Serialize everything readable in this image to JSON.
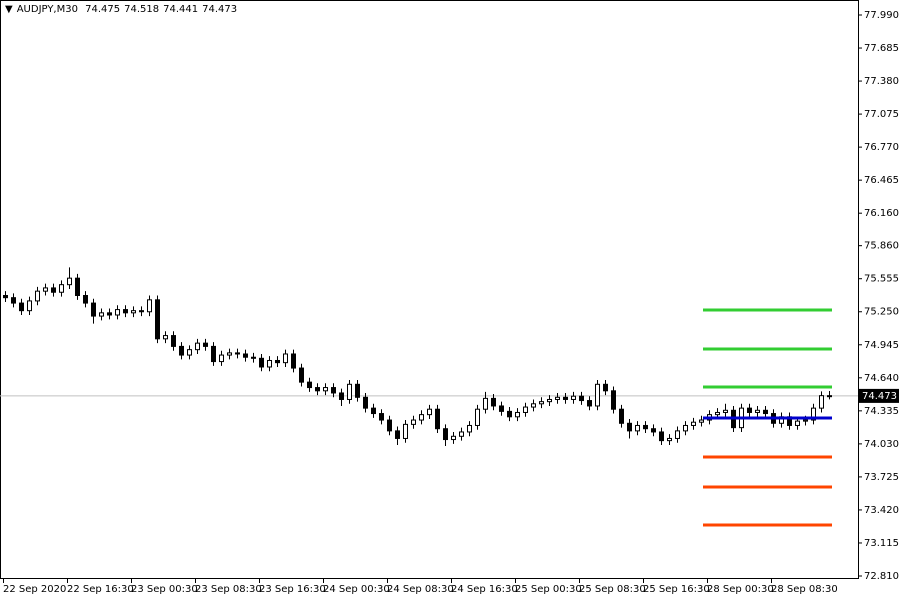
{
  "chart_data": {
    "type": "candlestick",
    "title": "AUDJPY,M30",
    "categories": [
      "22 Sep 2020",
      "22 Sep 16:30",
      "23 Sep 00:30",
      "23 Sep 08:30",
      "23 Sep 16:30",
      "24 Sep 00:30",
      "24 Sep 08:30",
      "24 Sep 16:30",
      "25 Sep 00:30",
      "25 Sep 08:30",
      "25 Sep 16:30",
      "28 Sep 00:30",
      "28 Sep 08:30"
    ],
    "open": [
      75.4,
      75.38,
      75.33,
      75.26,
      75.35,
      75.44,
      75.47,
      75.43,
      75.5,
      75.56,
      75.4,
      75.33,
      75.21,
      75.24,
      75.22,
      75.27,
      75.24,
      75.26,
      75.25,
      75.36,
      75.0,
      75.03,
      74.93,
      74.85,
      74.9,
      74.96,
      74.93,
      74.79,
      74.85,
      74.87,
      74.86,
      74.83,
      74.82,
      74.74,
      74.8,
      74.78,
      74.86,
      74.73,
      74.6,
      74.55,
      74.52,
      74.55,
      74.5,
      74.44,
      74.58,
      74.46,
      74.36,
      74.31,
      74.25,
      74.15,
      74.08,
      74.21,
      74.25,
      74.3,
      74.35,
      74.17,
      74.07,
      74.1,
      74.14,
      74.2,
      74.35,
      74.45,
      74.38,
      74.33,
      74.28,
      74.32,
      74.37,
      74.4,
      74.42,
      74.44,
      74.46,
      74.44,
      74.47,
      74.43,
      74.38,
      74.58,
      74.52,
      74.35,
      74.22,
      74.15,
      74.2,
      74.17,
      74.14,
      74.06,
      74.08,
      74.15,
      74.2,
      74.23,
      74.25,
      74.3,
      74.32,
      74.34,
      74.18,
      74.36,
      74.32,
      74.34,
      74.31,
      74.22,
      74.28,
      74.2,
      74.24,
      74.25,
      74.36,
      74.475
    ],
    "high": [
      75.44,
      75.42,
      75.37,
      75.39,
      75.48,
      75.51,
      75.51,
      75.54,
      75.66,
      75.6,
      75.44,
      75.37,
      75.28,
      75.28,
      75.31,
      75.31,
      75.3,
      75.3,
      75.4,
      75.4,
      75.07,
      75.07,
      74.97,
      74.94,
      75.0,
      75.0,
      74.97,
      74.89,
      74.91,
      74.91,
      74.9,
      74.87,
      74.86,
      74.84,
      74.84,
      74.9,
      74.9,
      74.77,
      74.64,
      74.59,
      74.59,
      74.59,
      74.54,
      74.62,
      74.62,
      74.5,
      74.4,
      74.35,
      74.29,
      74.19,
      74.25,
      74.29,
      74.34,
      74.39,
      74.39,
      74.21,
      74.14,
      74.18,
      74.24,
      74.39,
      74.51,
      74.49,
      74.42,
      74.37,
      74.36,
      74.41,
      74.44,
      74.46,
      74.48,
      74.5,
      74.5,
      74.51,
      74.51,
      74.47,
      74.62,
      74.62,
      74.56,
      74.39,
      74.26,
      74.24,
      74.24,
      74.21,
      74.18,
      74.12,
      74.19,
      74.24,
      74.27,
      74.29,
      74.34,
      74.36,
      74.4,
      74.38,
      74.4,
      74.4,
      74.38,
      74.38,
      74.35,
      74.32,
      74.32,
      74.28,
      74.29,
      74.4,
      74.515,
      74.518
    ],
    "low": [
      75.34,
      75.29,
      75.22,
      75.22,
      75.31,
      75.4,
      75.39,
      75.39,
      75.46,
      75.36,
      75.29,
      75.14,
      75.17,
      75.18,
      75.18,
      75.2,
      75.2,
      75.21,
      75.21,
      74.96,
      74.96,
      74.89,
      74.81,
      74.81,
      74.86,
      74.89,
      74.75,
      74.75,
      74.81,
      74.82,
      74.79,
      74.78,
      74.7,
      74.7,
      74.74,
      74.74,
      74.69,
      74.56,
      74.51,
      74.48,
      74.48,
      74.46,
      74.38,
      74.4,
      74.42,
      74.32,
      74.27,
      74.21,
      74.11,
      74.02,
      74.04,
      74.17,
      74.21,
      74.26,
      74.13,
      74.01,
      74.03,
      74.06,
      74.1,
      74.16,
      74.31,
      74.34,
      74.29,
      74.24,
      74.24,
      74.28,
      74.33,
      74.36,
      74.38,
      74.4,
      74.4,
      74.4,
      74.39,
      74.34,
      74.34,
      74.48,
      74.31,
      74.18,
      74.08,
      74.11,
      74.13,
      74.1,
      74.02,
      74.02,
      74.04,
      74.11,
      74.16,
      74.19,
      74.21,
      74.26,
      74.28,
      74.14,
      74.14,
      74.28,
      74.28,
      74.27,
      74.18,
      74.18,
      74.16,
      74.16,
      74.2,
      74.21,
      74.32,
      74.441
    ],
    "close": [
      75.38,
      75.33,
      75.26,
      75.35,
      75.44,
      75.47,
      75.43,
      75.5,
      75.56,
      75.4,
      75.33,
      75.21,
      75.24,
      75.22,
      75.27,
      75.24,
      75.26,
      75.25,
      75.36,
      75.0,
      75.03,
      74.93,
      74.85,
      74.9,
      74.96,
      74.93,
      74.79,
      74.85,
      74.87,
      74.86,
      74.83,
      74.82,
      74.74,
      74.8,
      74.78,
      74.86,
      74.73,
      74.6,
      74.55,
      74.52,
      74.55,
      74.5,
      74.44,
      74.58,
      74.46,
      74.36,
      74.31,
      74.25,
      74.15,
      74.08,
      74.21,
      74.25,
      74.3,
      74.35,
      74.17,
      74.07,
      74.1,
      74.14,
      74.2,
      74.35,
      74.45,
      74.38,
      74.33,
      74.28,
      74.32,
      74.37,
      74.4,
      74.42,
      74.44,
      74.46,
      74.44,
      74.47,
      74.43,
      74.38,
      74.58,
      74.52,
      74.35,
      74.22,
      74.15,
      74.2,
      74.17,
      74.14,
      74.06,
      74.08,
      74.15,
      74.2,
      74.23,
      74.25,
      74.3,
      74.32,
      74.34,
      74.18,
      74.36,
      74.32,
      74.34,
      74.31,
      74.22,
      74.28,
      74.2,
      74.24,
      74.25,
      74.36,
      74.475,
      74.473
    ],
    "ylim": [
      72.81,
      77.99
    ],
    "yticks": [
      {
        "value": 77.99,
        "label": "77.990"
      },
      {
        "value": 77.685,
        "label": "77.685"
      },
      {
        "value": 77.38,
        "label": "77.380"
      },
      {
        "value": 77.075,
        "label": "77.075"
      },
      {
        "value": 76.77,
        "label": "76.770"
      },
      {
        "value": 76.465,
        "label": "76.465"
      },
      {
        "value": 76.16,
        "label": "76.160"
      },
      {
        "value": 75.86,
        "label": "75.860"
      },
      {
        "value": 75.555,
        "label": "75.555"
      },
      {
        "value": 75.25,
        "label": "75.250"
      },
      {
        "value": 74.945,
        "label": "74.945"
      },
      {
        "value": 74.64,
        "label": "74.640"
      },
      {
        "value": 74.335,
        "label": "74.335"
      },
      {
        "value": 74.03,
        "label": "74.030"
      },
      {
        "value": 73.725,
        "label": "73.725"
      },
      {
        "value": 73.42,
        "label": "73.420"
      },
      {
        "value": 73.115,
        "label": "73.115"
      },
      {
        "value": 72.81,
        "label": "72.810"
      }
    ],
    "levels": [
      {
        "value": 75.266,
        "color": "#32cd32"
      },
      {
        "value": 74.906,
        "color": "#32cd32"
      },
      {
        "value": 74.555,
        "color": "#32cd32"
      },
      {
        "value": 74.269,
        "color": "#0000cd"
      },
      {
        "value": 73.909,
        "color": "#ff4500"
      },
      {
        "value": 73.632,
        "color": "#ff4500"
      },
      {
        "value": 73.281,
        "color": "#ff4500"
      }
    ]
  }
}
